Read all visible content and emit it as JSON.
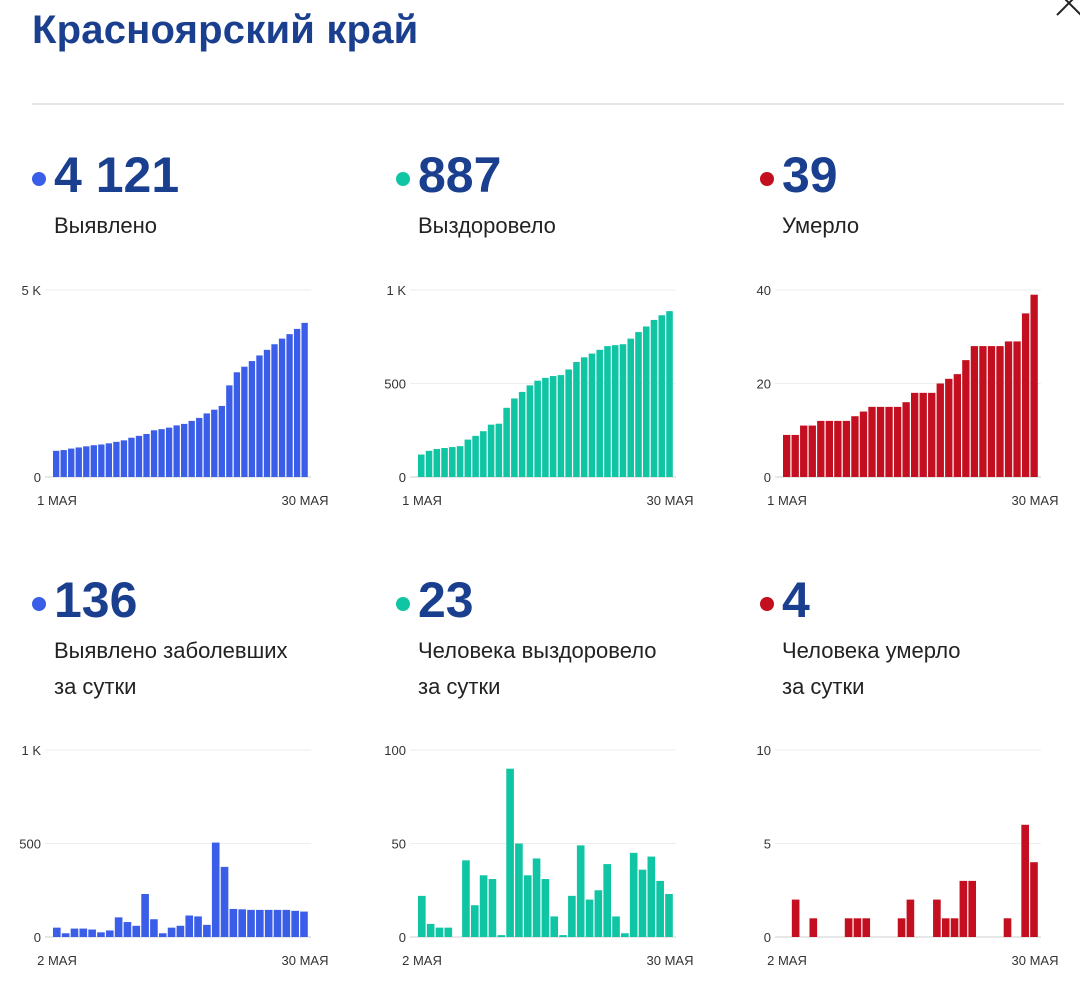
{
  "header": {
    "title": "Красноярский край"
  },
  "colors": {
    "title": "#1b3f8f",
    "blue": "#3b5ee8",
    "teal": "#10c5a4",
    "red": "#c30f1f"
  },
  "stats": [
    {
      "value": "4 121",
      "label_line1": "Выявлено",
      "label_line2": ""
    },
    {
      "value": "887",
      "label_line1": "Выздоровело",
      "label_line2": ""
    },
    {
      "value": "39",
      "label_line1": "Умерло",
      "label_line2": ""
    },
    {
      "value": "136",
      "label_line1": "Выявлено заболевших",
      "label_line2": "за сутки"
    },
    {
      "value": "23",
      "label_line1": "Человека выздоровело",
      "label_line2": "за сутки"
    },
    {
      "value": "4",
      "label_line1": "Человека умерло",
      "label_line2": "за сутки"
    }
  ],
  "chart_data": [
    {
      "type": "bar",
      "color": "#3b5ee8",
      "grid": true,
      "ylim": [
        0,
        5000
      ],
      "yticks": [
        "0",
        "5 K"
      ],
      "x_start_label": "1 МАЯ",
      "x_end_label": "30 МАЯ",
      "values": [
        700,
        720,
        760,
        790,
        820,
        850,
        870,
        900,
        940,
        980,
        1050,
        1100,
        1150,
        1250,
        1280,
        1320,
        1380,
        1420,
        1500,
        1580,
        1700,
        1800,
        1900,
        2450,
        2800,
        2950,
        3100,
        3250,
        3400,
        3550,
        3700,
        3820,
        3960,
        4121
      ]
    },
    {
      "type": "bar",
      "color": "#10c5a4",
      "grid": true,
      "ylim": [
        0,
        1000
      ],
      "yticks": [
        "0",
        "500",
        "1 K"
      ],
      "x_start_label": "1 МАЯ",
      "x_end_label": "30 МАЯ",
      "values": [
        120,
        140,
        150,
        155,
        160,
        165,
        200,
        220,
        245,
        280,
        285,
        370,
        420,
        455,
        490,
        515,
        530,
        540,
        545,
        575,
        615,
        640,
        660,
        680,
        700,
        705,
        710,
        740,
        775,
        805,
        840,
        865,
        887
      ]
    },
    {
      "type": "bar",
      "color": "#c30f1f",
      "grid": true,
      "ylim": [
        0,
        40
      ],
      "yticks": [
        "0",
        "20",
        "40"
      ],
      "x_start_label": "1 МАЯ",
      "x_end_label": "30 МАЯ",
      "values": [
        9,
        9,
        11,
        11,
        12,
        12,
        12,
        12,
        13,
        14,
        15,
        15,
        15,
        15,
        16,
        18,
        18,
        18,
        20,
        21,
        22,
        25,
        28,
        28,
        28,
        28,
        29,
        29,
        35,
        39
      ]
    },
    {
      "type": "bar",
      "color": "#3b5ee8",
      "grid": true,
      "ylim": [
        0,
        1000
      ],
      "yticks": [
        "0",
        "500",
        "1 K"
      ],
      "x_start_label": "2 МАЯ",
      "x_end_label": "30 МАЯ",
      "values": [
        50,
        20,
        45,
        45,
        40,
        25,
        35,
        105,
        80,
        60,
        230,
        95,
        20,
        50,
        60,
        115,
        110,
        65,
        505,
        375,
        150,
        148,
        145,
        145,
        145,
        145,
        145,
        140,
        136
      ]
    },
    {
      "type": "bar",
      "color": "#10c5a4",
      "grid": true,
      "ylim": [
        0,
        100
      ],
      "yticks": [
        "0",
        "50",
        "100"
      ],
      "x_start_label": "2 МАЯ",
      "x_end_label": "30 МАЯ",
      "values": [
        22,
        7,
        5,
        5,
        0,
        41,
        17,
        33,
        31,
        1,
        90,
        50,
        33,
        42,
        31,
        11,
        1,
        22,
        49,
        20,
        25,
        39,
        11,
        2,
        45,
        36,
        43,
        30,
        23
      ]
    },
    {
      "type": "bar",
      "color": "#c30f1f",
      "grid": true,
      "ylim": [
        0,
        10
      ],
      "yticks": [
        "0",
        "5",
        "10"
      ],
      "x_start_label": "2 МАЯ",
      "x_end_label": "30 МАЯ",
      "values": [
        0,
        2,
        0,
        1,
        0,
        0,
        0,
        1,
        1,
        1,
        0,
        0,
        0,
        1,
        2,
        0,
        0,
        2,
        1,
        1,
        3,
        3,
        0,
        0,
        0,
        1,
        0,
        6,
        4
      ]
    }
  ]
}
